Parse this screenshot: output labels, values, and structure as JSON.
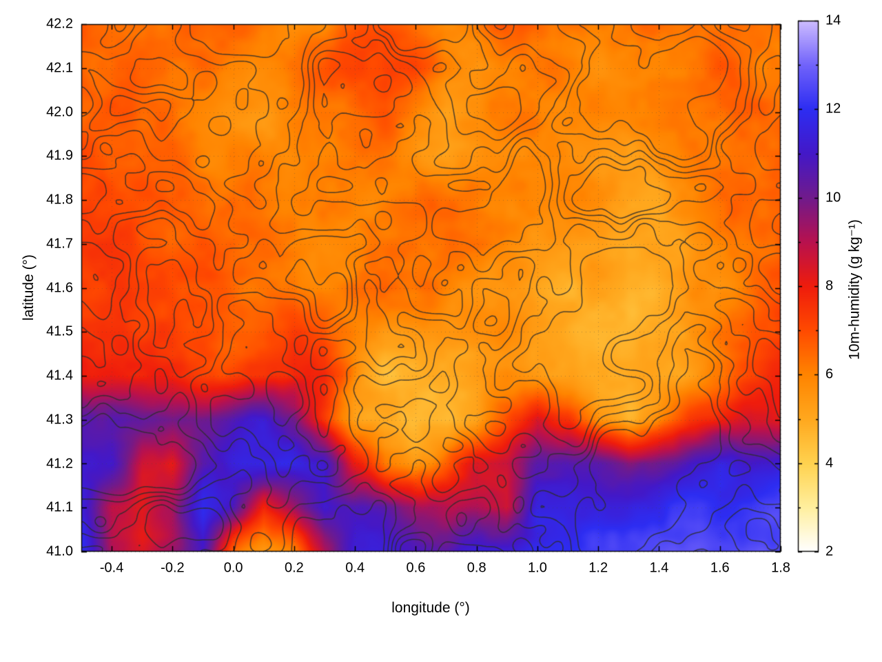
{
  "chart_data": {
    "type": "heatmap",
    "title": "",
    "xlabel": "longitude (°)",
    "ylabel": "latitude (°)",
    "colorbar_label": "10m-humidity (g kg⁻¹)",
    "xlim": [
      -0.5,
      1.8
    ],
    "ylim": [
      41.0,
      42.2
    ],
    "clim": [
      2,
      14
    ],
    "grid_on": true,
    "legend": "none",
    "xticks": {
      "values": [
        -0.4,
        -0.2,
        0.0,
        0.2,
        0.4,
        0.6,
        0.8,
        1.0,
        1.2,
        1.4,
        1.6,
        1.8
      ],
      "labels": [
        "-0.4",
        "-0.2",
        "0.0",
        "0.2",
        "0.4",
        "0.6",
        "0.8",
        "1.0",
        "1.2",
        "1.4",
        "1.6",
        "1.8"
      ]
    },
    "yticks": {
      "values": [
        41.0,
        41.1,
        41.2,
        41.3,
        41.4,
        41.5,
        41.6,
        41.7,
        41.8,
        41.9,
        42.0,
        42.1,
        42.2
      ],
      "labels": [
        "41.0",
        "41.1",
        "41.2",
        "41.3",
        "41.4",
        "41.5",
        "41.6",
        "41.7",
        "41.8",
        "41.9",
        "42.0",
        "42.1",
        "42.2"
      ]
    },
    "colorbar_ticks": {
      "values": [
        2,
        4,
        6,
        8,
        10,
        12,
        14
      ],
      "labels": [
        "2",
        "4",
        "6",
        "8",
        "10",
        "12",
        "14"
      ]
    },
    "palette": [
      {
        "v": 2,
        "c": "#ffffff"
      },
      {
        "v": 3,
        "c": "#ffef9e"
      },
      {
        "v": 4,
        "c": "#ffd24f"
      },
      {
        "v": 5,
        "c": "#ffa81e"
      },
      {
        "v": 6,
        "c": "#ff8400"
      },
      {
        "v": 7,
        "c": "#ff4a00"
      },
      {
        "v": 8,
        "c": "#ef1c0c"
      },
      {
        "v": 9,
        "c": "#b8114e"
      },
      {
        "v": 10,
        "c": "#701a8c"
      },
      {
        "v": 11,
        "c": "#4318c8"
      },
      {
        "v": 12,
        "c": "#2d2df2"
      },
      {
        "v": 13,
        "c": "#7163fa"
      },
      {
        "v": 14,
        "c": "#cdbcff"
      }
    ],
    "grid_lons": [
      -0.5,
      -0.4,
      -0.3,
      -0.2,
      -0.1,
      0.0,
      0.1,
      0.2,
      0.3,
      0.4,
      0.5,
      0.6,
      0.7,
      0.8,
      0.9,
      1.0,
      1.1,
      1.2,
      1.3,
      1.4,
      1.5,
      1.6,
      1.7,
      1.8
    ],
    "grid_lats": [
      42.2,
      42.1,
      42.0,
      41.9,
      41.8,
      41.7,
      41.6,
      41.5,
      41.4,
      41.3,
      41.2,
      41.1,
      41.0
    ],
    "humidity_g_per_kg": [
      [
        6.4,
        6.3,
        6.2,
        6.4,
        6.6,
        6.4,
        6.2,
        6.1,
        6.3,
        6.9,
        7.3,
        6.6,
        6.1,
        6.3,
        6.6,
        6.4,
        6.2,
        6.1,
        6.2,
        6.4,
        6.6,
        6.4,
        6.2,
        6.3
      ],
      [
        6.6,
        6.5,
        6.4,
        6.3,
        6.2,
        6.0,
        5.8,
        6.1,
        6.6,
        7.1,
        7.4,
        6.9,
        5.9,
        5.6,
        6.1,
        6.3,
        6.1,
        5.9,
        6.0,
        6.2,
        6.4,
        6.6,
        6.4,
        6.2
      ],
      [
        6.6,
        6.5,
        6.4,
        6.2,
        6.0,
        5.6,
        5.3,
        5.9,
        6.3,
        6.6,
        6.9,
        6.1,
        5.3,
        5.6,
        6.1,
        6.3,
        6.1,
        5.9,
        5.7,
        5.9,
        6.1,
        6.3,
        6.6,
        6.4
      ],
      [
        6.9,
        6.7,
        6.6,
        6.4,
        6.2,
        6.0,
        5.6,
        5.9,
        6.1,
        6.3,
        6.1,
        5.9,
        5.6,
        5.7,
        5.9,
        6.1,
        5.9,
        5.6,
        5.3,
        5.6,
        5.9,
        6.1,
        6.3,
        6.6
      ],
      [
        7.1,
        6.9,
        6.7,
        6.6,
        6.4,
        6.2,
        6.1,
        6.3,
        6.1,
        5.9,
        6.1,
        6.3,
        6.1,
        5.9,
        5.7,
        5.9,
        6.1,
        5.7,
        5.3,
        5.1,
        5.6,
        6.1,
        6.4,
        6.6
      ],
      [
        7.3,
        7.1,
        6.9,
        6.7,
        6.6,
        6.4,
        6.2,
        6.1,
        5.9,
        5.7,
        5.9,
        6.1,
        6.3,
        6.1,
        5.9,
        5.7,
        5.6,
        5.4,
        5.1,
        5.3,
        5.6,
        6.1,
        6.4,
        6.9
      ],
      [
        7.4,
        7.3,
        7.1,
        6.9,
        6.7,
        6.6,
        6.4,
        6.2,
        6.1,
        6.6,
        6.9,
        6.3,
        6.1,
        5.9,
        5.6,
        5.3,
        5.1,
        4.9,
        4.8,
        5.1,
        5.5,
        6.1,
        6.6,
        7.1
      ],
      [
        7.6,
        7.5,
        7.3,
        7.1,
        6.9,
        6.7,
        6.9,
        7.6,
        7.1,
        6.1,
        5.3,
        5.1,
        5.3,
        5.7,
        5.5,
        5.1,
        4.9,
        4.7,
        4.7,
        5.0,
        5.4,
        6.1,
        6.7,
        7.3
      ],
      [
        8.1,
        7.9,
        7.7,
        7.5,
        7.3,
        7.1,
        7.4,
        7.9,
        7.6,
        5.6,
        4.9,
        4.8,
        4.9,
        5.3,
        5.7,
        5.3,
        4.9,
        4.7,
        4.8,
        5.1,
        5.6,
        6.3,
        7.1,
        7.6
      ],
      [
        10.6,
        10.4,
        10.1,
        9.9,
        10.3,
        10.6,
        10.9,
        10.1,
        7.6,
        5.3,
        4.7,
        4.5,
        4.6,
        5.1,
        7.1,
        8.6,
        7.6,
        5.6,
        5.1,
        6.1,
        7.6,
        8.1,
        8.6,
        8.1
      ],
      [
        11.4,
        10.9,
        8.6,
        8.1,
        10.6,
        11.4,
        11.7,
        11.4,
        10.9,
        8.1,
        6.1,
        5.6,
        6.6,
        8.1,
        8.6,
        10.6,
        10.9,
        10.4,
        9.9,
        10.4,
        10.9,
        11.4,
        10.9,
        11.4
      ],
      [
        11.7,
        8.6,
        8.1,
        9.1,
        11.7,
        10.5,
        8.0,
        9.5,
        11.4,
        10.9,
        10.4,
        9.1,
        9.0,
        9.0,
        8.5,
        11.4,
        11.4,
        11.7,
        11.4,
        11.7,
        11.9,
        12.1,
        12.2,
        12.3
      ],
      [
        11.9,
        9.1,
        8.6,
        9.6,
        10.9,
        6.5,
        5.6,
        6.1,
        9.5,
        11.4,
        11.1,
        10.9,
        10.4,
        11.4,
        11.7,
        11.9,
        11.9,
        12.1,
        12.2,
        12.4,
        12.5,
        12.7,
        12.9,
        12.9
      ]
    ],
    "contours": {
      "description": "terrain contour overlay",
      "color": "rgba(45,45,45,0.85)",
      "levels": [
        0.36,
        0.44,
        0.52,
        0.6,
        0.68
      ]
    }
  }
}
